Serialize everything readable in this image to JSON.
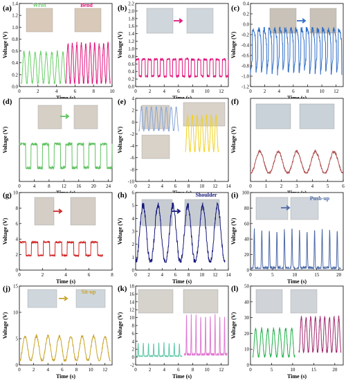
{
  "chart_data": [
    {
      "panel": "(a)",
      "type": "line",
      "xlabel": "Time (s)",
      "ylabel": "Voltage (V)",
      "xlim": [
        0,
        10
      ],
      "ylim": [
        0,
        1.4
      ],
      "xticks": [
        "0",
        "2",
        "4",
        "6",
        "8",
        "10"
      ],
      "yticks": [
        "0.0",
        "0.2",
        "0.4",
        "0.6",
        "0.8",
        "1.0",
        "1.2",
        "1.4"
      ],
      "annotations": [
        "Wrist",
        "Bend"
      ],
      "series": [
        {
          "color": "#6ccf6a",
          "x0": 0.2,
          "x1": 5.0,
          "min": 0.05,
          "max": 0.58,
          "cycles": 8,
          "shape": "sin"
        },
        {
          "color": "#e0127a",
          "x0": 5.0,
          "x1": 9.8,
          "min": 0.05,
          "max": 0.72,
          "cycles": 10,
          "shape": "sin"
        }
      ]
    },
    {
      "panel": "(b)",
      "type": "line",
      "xlabel": "Time (s)",
      "ylabel": "Voltage (V)",
      "xlim": [
        0,
        13
      ],
      "ylim": [
        0,
        2.2
      ],
      "xticks": [
        "0",
        "2",
        "4",
        "6",
        "8",
        "10",
        "12"
      ],
      "yticks": [
        "0.0",
        "0.2",
        "0.4",
        "0.6",
        "0.8",
        "1.0",
        "1.2",
        "1.4",
        "1.6",
        "1.8",
        "2.0",
        "2.2"
      ],
      "series": [
        {
          "color": "#e0127a",
          "x0": 0,
          "x1": 13,
          "min": 0.25,
          "max": 0.72,
          "cycles": 15,
          "shape": "square"
        }
      ]
    },
    {
      "panel": "(c)",
      "type": "line",
      "xlabel": "Time (s)",
      "ylabel": "Voltage (V)",
      "xlim": [
        0,
        13
      ],
      "ylim": [
        -1.2,
        0.4
      ],
      "xticks": [
        "0",
        "2",
        "4",
        "6",
        "8",
        "10",
        "12"
      ],
      "yticks": [
        "-1.2",
        "-1.0",
        "-0.8",
        "-0.6",
        "-0.4",
        "-0.2",
        "0.0",
        "0.2",
        "0.4"
      ],
      "series": [
        {
          "color": "#2f6ec6",
          "x0": 0,
          "x1": 12.8,
          "min": -1.0,
          "max": -0.1,
          "cycles": 17,
          "shape": "dip"
        }
      ]
    },
    {
      "panel": "(d)",
      "type": "line",
      "xlabel": "Time (s)",
      "ylabel": "Voltage (V)",
      "xlim": [
        0,
        25
      ],
      "ylim": [
        0,
        1.0
      ],
      "xticks": [
        "0",
        "4",
        "8",
        "12",
        "16",
        "20",
        "24"
      ],
      "yticks": [],
      "series": [
        {
          "color": "#5fc25f",
          "x0": 0,
          "x1": 25,
          "min": 0.15,
          "max": 0.45,
          "cycles": 8,
          "shape": "square"
        }
      ]
    },
    {
      "panel": "(e)",
      "type": "line",
      "xlabel": "Time (s)",
      "ylabel": "Voltage (V)",
      "xlim": [
        0,
        14
      ],
      "ylim": [
        -10,
        4
      ],
      "xticks": [
        "0",
        "2",
        "4",
        "6",
        "8",
        "10",
        "12",
        "14"
      ],
      "yticks": [
        "-10",
        "-8",
        "-6",
        "-4",
        "-2",
        "0",
        "2",
        "4"
      ],
      "series": [
        {
          "color": "#8aa6d8",
          "x0": 0.5,
          "x1": 6.5,
          "min": -1.5,
          "max": 2.5,
          "cycles": 8,
          "shape": "sin"
        },
        {
          "color": "#f2d21c",
          "x0": 7.5,
          "x1": 12.5,
          "min": -5.0,
          "max": 1.0,
          "cycles": 7,
          "shape": "sin"
        }
      ]
    },
    {
      "panel": "(f)",
      "type": "line",
      "xlabel": "Time (s)",
      "ylabel": "Voltage (V)",
      "xlim": [
        0,
        6
      ],
      "ylim": [
        0,
        5
      ],
      "xticks": [
        "0",
        "1",
        "2",
        "3",
        "4",
        "5",
        "6"
      ],
      "yticks": [],
      "series": [
        {
          "color": "#b05050",
          "x0": 0,
          "x1": 6,
          "min": 0.5,
          "max": 1.8,
          "cycles": 5,
          "shape": "peak"
        }
      ]
    },
    {
      "panel": "(g)",
      "type": "line",
      "xlabel": "Time (s)",
      "ylabel": "Voltage (V)",
      "xlim": [
        0,
        8
      ],
      "ylim": [
        0,
        10
      ],
      "xticks": [
        "0",
        "2",
        "4",
        "6",
        "8"
      ],
      "yticks": [
        "0",
        "2",
        "4",
        "6",
        "8",
        "10"
      ],
      "series": [
        {
          "color": "#d02424",
          "x0": 0,
          "x1": 7.2,
          "min": 1.8,
          "max": 3.6,
          "cycles": 7,
          "shape": "square"
        }
      ]
    },
    {
      "panel": "(h)",
      "type": "line",
      "xlabel": "Time (s)",
      "ylabel": "Voltage (V)",
      "xlim": [
        0,
        14
      ],
      "ylim": [
        0,
        6
      ],
      "xticks": [
        "0",
        "2",
        "4",
        "6",
        "8",
        "10",
        "12",
        "14"
      ],
      "yticks": [
        "0",
        "1",
        "2",
        "3",
        "4",
        "5",
        "6"
      ],
      "annotations": [
        "Shoulder"
      ],
      "series": [
        {
          "color": "#15177a",
          "x0": 0,
          "x1": 13.5,
          "min": 0.6,
          "max": 5.0,
          "cycles": 6,
          "shape": "peak"
        }
      ]
    },
    {
      "panel": "(i)",
      "type": "line",
      "xlabel": "Time (s)",
      "ylabel": "Voltage (V)",
      "xlim": [
        0,
        21
      ],
      "ylim": [
        0,
        100
      ],
      "xticks": [
        "0",
        "5",
        "10",
        "15",
        "20"
      ],
      "yticks": [
        "0",
        "20",
        "40",
        "60",
        "80",
        "100"
      ],
      "annotations": [
        "Push-up"
      ],
      "series": [
        {
          "color": "#4c6aa8",
          "x0": 0,
          "x1": 20.5,
          "min": 2,
          "max": 53,
          "cycles": 12,
          "shape": "spike"
        }
      ]
    },
    {
      "panel": "(j)",
      "type": "line",
      "xlabel": "Time (s)",
      "ylabel": "Voltage (V)",
      "xlim": [
        0,
        13
      ],
      "ylim": [
        0,
        15
      ],
      "xticks": [
        "0",
        "2",
        "4",
        "6",
        "8",
        "10",
        "12"
      ],
      "yticks": [
        "0",
        "5",
        "10",
        "15"
      ],
      "annotations": [
        "Sit-up"
      ],
      "series": [
        {
          "color": "#c8a42a",
          "x0": 0,
          "x1": 12.8,
          "min": 0.8,
          "max": 5.5,
          "cycles": 8,
          "shape": "peak"
        }
      ]
    },
    {
      "panel": "(k)",
      "type": "line",
      "xlabel": "Time (s)",
      "ylabel": "Voltage (V)",
      "xlim": [
        0,
        13
      ],
      "ylim": [
        -2,
        18
      ],
      "xticks": [
        "0",
        "2",
        "4",
        "6",
        "8",
        "10",
        "12"
      ],
      "yticks": [
        "-2",
        "0",
        "2",
        "4",
        "6",
        "8",
        "10",
        "12",
        "14",
        "16",
        "18"
      ],
      "series": [
        {
          "color": "#5cc7a6",
          "x0": 0,
          "x1": 6.5,
          "min": 0.2,
          "max": 3.5,
          "cycles": 9,
          "shape": "spike"
        },
        {
          "color": "#e07ad2",
          "x0": 6.8,
          "x1": 12.8,
          "min": 0.5,
          "max": 10.5,
          "cycles": 9,
          "shape": "spike"
        }
      ]
    },
    {
      "panel": "(l)",
      "type": "line",
      "xlabel": "Time (s)",
      "ylabel": "Voltage (V)",
      "xlim": [
        0,
        22
      ],
      "ylim": [
        0,
        50
      ],
      "xticks": [
        "0",
        "5",
        "10",
        "15",
        "20"
      ],
      "yticks": [
        "0",
        "10",
        "20",
        "30",
        "40",
        "50"
      ],
      "series": [
        {
          "color": "#22b04a",
          "x0": 0.5,
          "x1": 10.5,
          "min": 5,
          "max": 23,
          "cycles": 7,
          "shape": "peak"
        },
        {
          "color": "#a0286e",
          "x0": 11.5,
          "x1": 21.5,
          "min": 8,
          "max": 30,
          "cycles": 9,
          "shape": "peak"
        }
      ]
    }
  ]
}
